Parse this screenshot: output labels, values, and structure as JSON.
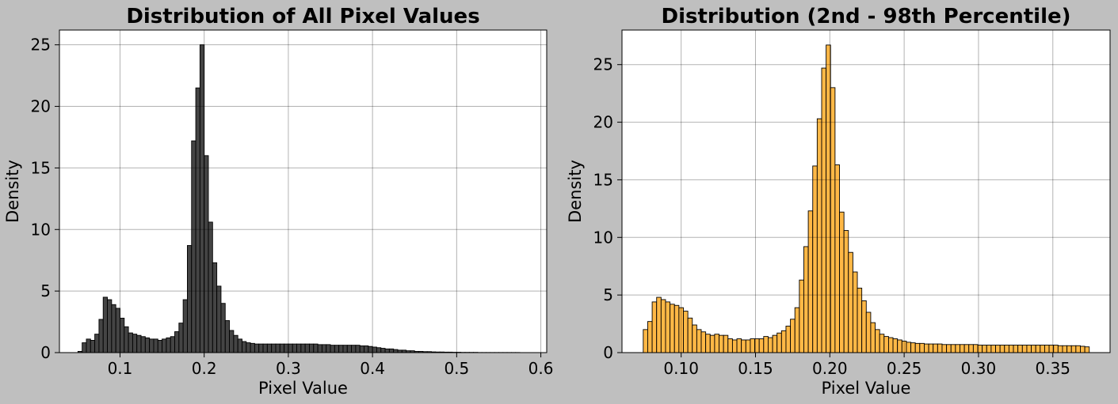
{
  "chart_data": [
    {
      "type": "bar",
      "title": "Distribution of All Pixel Values",
      "xlabel": "Pixel Value",
      "ylabel": "Density",
      "xlim": [
        0.028,
        0.607
      ],
      "ylim": [
        0,
        26.2
      ],
      "xticks": [
        0.1,
        0.2,
        0.3,
        0.4,
        0.5,
        0.6
      ],
      "xtick_labels": [
        "0.1",
        "0.2",
        "0.3",
        "0.4",
        "0.5",
        "0.6"
      ],
      "yticks": [
        0,
        5,
        10,
        15,
        20,
        25
      ],
      "ytick_labels": [
        "0",
        "5",
        "10",
        "15",
        "20",
        "25"
      ],
      "grid": true,
      "bar_color": "#3a3a3a",
      "edge_color": "#000000",
      "bin_start": 0.05,
      "bin_width": 0.005,
      "values": [
        0.1,
        0.8,
        1.1,
        1.0,
        1.5,
        2.7,
        4.5,
        4.3,
        3.9,
        3.6,
        2.8,
        2.1,
        1.6,
        1.5,
        1.4,
        1.3,
        1.2,
        1.1,
        1.1,
        1.0,
        1.1,
        1.2,
        1.3,
        1.7,
        2.4,
        4.3,
        8.7,
        17.2,
        21.5,
        25.0,
        16.0,
        10.6,
        7.3,
        5.4,
        4.0,
        2.6,
        1.8,
        1.4,
        1.1,
        0.9,
        0.8,
        0.75,
        0.7,
        0.7,
        0.7,
        0.7,
        0.7,
        0.7,
        0.7,
        0.7,
        0.7,
        0.7,
        0.7,
        0.7,
        0.7,
        0.7,
        0.7,
        0.65,
        0.65,
        0.65,
        0.6,
        0.6,
        0.6,
        0.6,
        0.6,
        0.6,
        0.6,
        0.55,
        0.55,
        0.5,
        0.45,
        0.4,
        0.35,
        0.3,
        0.3,
        0.25,
        0.2,
        0.2,
        0.15,
        0.15,
        0.1,
        0.1,
        0.08,
        0.08,
        0.06,
        0.05,
        0.05,
        0.04,
        0.04,
        0.03,
        0.03,
        0.02,
        0.02,
        0.02,
        0.02,
        0.01,
        0.01,
        0.01,
        0.01,
        0.01,
        0.01,
        0.01,
        0.01,
        0.01,
        0.01
      ]
    },
    {
      "type": "bar",
      "title": "Distribution (2nd - 98th Percentile)",
      "xlabel": "Pixel Value",
      "ylabel": "Density",
      "xlim": [
        0.0602,
        0.3885
      ],
      "ylim": [
        0,
        28.0
      ],
      "xticks": [
        0.1,
        0.15,
        0.2,
        0.25,
        0.3,
        0.35
      ],
      "xtick_labels": [
        "0.10",
        "0.15",
        "0.20",
        "0.25",
        "0.30",
        "0.35"
      ],
      "yticks": [
        0,
        5,
        10,
        15,
        20,
        25
      ],
      "ytick_labels": [
        "0",
        "5",
        "10",
        "15",
        "20",
        "25"
      ],
      "grid": true,
      "bar_color": "#ffb43c",
      "edge_color": "#000000",
      "bin_start": 0.0745,
      "bin_width": 0.003,
      "values": [
        2.0,
        2.7,
        4.4,
        4.8,
        4.6,
        4.4,
        4.2,
        4.1,
        3.9,
        3.6,
        3.0,
        2.4,
        2.0,
        1.8,
        1.6,
        1.5,
        1.6,
        1.5,
        1.5,
        1.2,
        1.1,
        1.2,
        1.1,
        1.1,
        1.2,
        1.2,
        1.2,
        1.4,
        1.3,
        1.5,
        1.7,
        1.9,
        2.3,
        2.9,
        3.9,
        6.3,
        9.2,
        12.3,
        16.2,
        20.3,
        24.7,
        26.7,
        23.0,
        16.3,
        12.2,
        10.6,
        8.7,
        7.0,
        5.6,
        4.5,
        3.5,
        2.6,
        2.0,
        1.6,
        1.4,
        1.3,
        1.2,
        1.1,
        1.0,
        0.9,
        0.85,
        0.8,
        0.8,
        0.75,
        0.75,
        0.75,
        0.75,
        0.7,
        0.7,
        0.7,
        0.7,
        0.7,
        0.7,
        0.7,
        0.7,
        0.65,
        0.65,
        0.65,
        0.65,
        0.65,
        0.65,
        0.65,
        0.65,
        0.65,
        0.65,
        0.65,
        0.65,
        0.65,
        0.65,
        0.65,
        0.65,
        0.65,
        0.65,
        0.6,
        0.6,
        0.6,
        0.6,
        0.6,
        0.55,
        0.5
      ]
    }
  ]
}
